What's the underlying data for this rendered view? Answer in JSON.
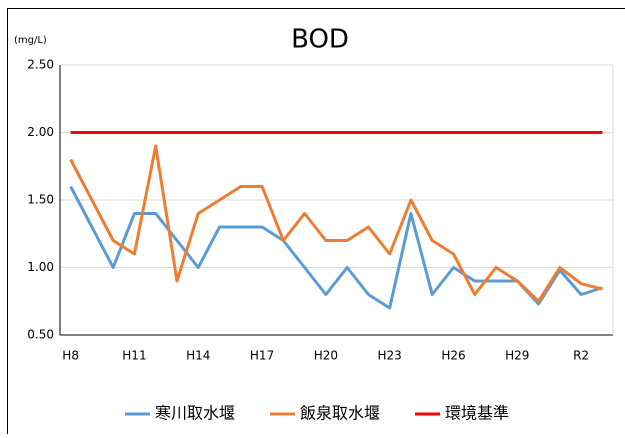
{
  "chart_data": {
    "type": "line",
    "title": "BOD",
    "y_unit": "(mg/L)",
    "categories": [
      "H8",
      null,
      null,
      "H11",
      null,
      null,
      "H14",
      null,
      null,
      "H17",
      null,
      null,
      "H20",
      null,
      null,
      "H23",
      null,
      null,
      "H26",
      null,
      null,
      "H29",
      null,
      null,
      "R2",
      null
    ],
    "series": [
      {
        "name": "寒川取水堰",
        "color": "#5b9bd5",
        "values": [
          1.6,
          1.3,
          1.0,
          1.4,
          1.4,
          1.2,
          1.0,
          1.3,
          1.3,
          1.3,
          1.2,
          1.0,
          0.8,
          1.0,
          0.8,
          0.7,
          1.4,
          0.8,
          1.0,
          0.9,
          0.9,
          0.9,
          0.73,
          0.98,
          0.8,
          0.85
        ]
      },
      {
        "name": "飯泉取水堰",
        "color": "#ed7d31",
        "values": [
          1.8,
          1.5,
          1.2,
          1.1,
          1.9,
          0.9,
          1.4,
          1.5,
          1.6,
          1.6,
          1.2,
          1.4,
          1.2,
          1.2,
          1.3,
          1.1,
          1.5,
          1.2,
          1.1,
          0.8,
          1.0,
          0.9,
          0.75,
          1.0,
          0.88,
          0.84
        ]
      },
      {
        "name": "環境基準",
        "color": "#ff0000",
        "values": [
          2.0,
          2.0,
          2.0,
          2.0,
          2.0,
          2.0,
          2.0,
          2.0,
          2.0,
          2.0,
          2.0,
          2.0,
          2.0,
          2.0,
          2.0,
          2.0,
          2.0,
          2.0,
          2.0,
          2.0,
          2.0,
          2.0,
          2.0,
          2.0,
          2.0,
          2.0
        ]
      }
    ],
    "ylim": [
      0.5,
      2.5
    ],
    "yticks": [
      {
        "value": 0.5,
        "label": "0.50"
      },
      {
        "value": 1.0,
        "label": "1.00"
      },
      {
        "value": 1.5,
        "label": "1.50"
      },
      {
        "value": 2.0,
        "label": "2.00"
      },
      {
        "value": 2.5,
        "label": "2.50"
      }
    ],
    "grid": true,
    "legend": "bottom"
  }
}
